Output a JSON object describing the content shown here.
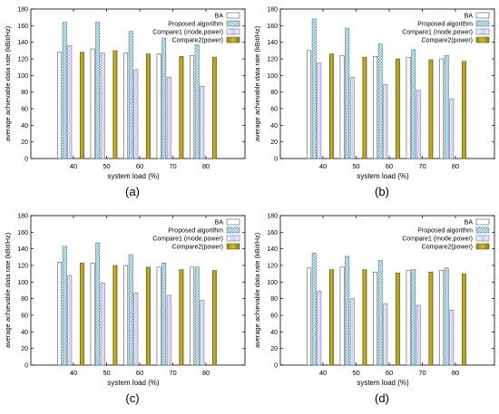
{
  "chart_data": [
    {
      "type": "bar",
      "panel_label": "(a)",
      "xlabel": "system load (%)",
      "ylabel": "average achievable data rate (kBit/Hz)",
      "ylim": [
        0,
        180
      ],
      "yticks": [
        0,
        20,
        40,
        60,
        80,
        100,
        120,
        140,
        160,
        180
      ],
      "categories": [
        "40",
        "50",
        "60",
        "70",
        "80"
      ],
      "legend_position": "top-right",
      "series": [
        {
          "name": "BA",
          "values": [
            128,
            132,
            127,
            126,
            124
          ]
        },
        {
          "name": "Proposed algorithm",
          "values": [
            164,
            164,
            153,
            145,
            137
          ]
        },
        {
          "name": "Compare1 (mode,power)",
          "values": [
            136,
            127,
            107,
            98,
            87
          ]
        },
        {
          "name": "Compare2(power)",
          "values": [
            128,
            130,
            126,
            123,
            122
          ]
        }
      ]
    },
    {
      "type": "bar",
      "panel_label": "(b)",
      "xlabel": "system load (%)",
      "ylabel": "average achievable data rate (kBit/Hz)",
      "ylim": [
        0,
        180
      ],
      "yticks": [
        0,
        20,
        40,
        60,
        80,
        100,
        120,
        140,
        160,
        180
      ],
      "categories": [
        "40",
        "50",
        "60",
        "70",
        "80"
      ],
      "legend_position": "top-right",
      "series": [
        {
          "name": "BA",
          "values": [
            130,
            124,
            123,
            122,
            120
          ]
        },
        {
          "name": "Proposed algorithm",
          "values": [
            168,
            157,
            138,
            131,
            124
          ]
        },
        {
          "name": "Compare1 (mode,power)",
          "values": [
            115,
            98,
            89,
            82,
            72
          ]
        },
        {
          "name": "Compare2(power)",
          "values": [
            126,
            122,
            120,
            119,
            117
          ]
        }
      ]
    },
    {
      "type": "bar",
      "panel_label": "(c)",
      "xlabel": "system load (%)",
      "ylabel": "average achievable data rate (kBit/Hz)",
      "ylim": [
        0,
        180
      ],
      "yticks": [
        0,
        20,
        40,
        60,
        80,
        100,
        120,
        140,
        160,
        180
      ],
      "categories": [
        "40",
        "50",
        "60",
        "70",
        "80"
      ],
      "legend_position": "top-right",
      "series": [
        {
          "name": "BA",
          "values": [
            124,
            123,
            120,
            118,
            118
          ]
        },
        {
          "name": "Proposed algorithm",
          "values": [
            143,
            147,
            133,
            123,
            118
          ]
        },
        {
          "name": "Compare1 (mode,power)",
          "values": [
            108,
            99,
            87,
            84,
            78
          ]
        },
        {
          "name": "Compare2(power)",
          "values": [
            123,
            120,
            118,
            115,
            114
          ]
        }
      ]
    },
    {
      "type": "bar",
      "panel_label": "(d)",
      "xlabel": "system load (%)",
      "ylabel": "average achievable data rate (kBit/Hz)",
      "ylim": [
        0,
        180
      ],
      "yticks": [
        0,
        20,
        40,
        60,
        80,
        100,
        120,
        140,
        160,
        180
      ],
      "categories": [
        "40",
        "50",
        "60",
        "70",
        "80"
      ],
      "legend_position": "top-right",
      "series": [
        {
          "name": "BA",
          "values": [
            117,
            118,
            112,
            114,
            114
          ]
        },
        {
          "name": "Proposed algorithm",
          "values": [
            135,
            131,
            126,
            115,
            117
          ]
        },
        {
          "name": "Compare1 (mode,power)",
          "values": [
            89,
            80,
            74,
            72,
            66
          ]
        },
        {
          "name": "Compare2(power)",
          "values": [
            115,
            115,
            111,
            112,
            110
          ]
        }
      ]
    }
  ]
}
